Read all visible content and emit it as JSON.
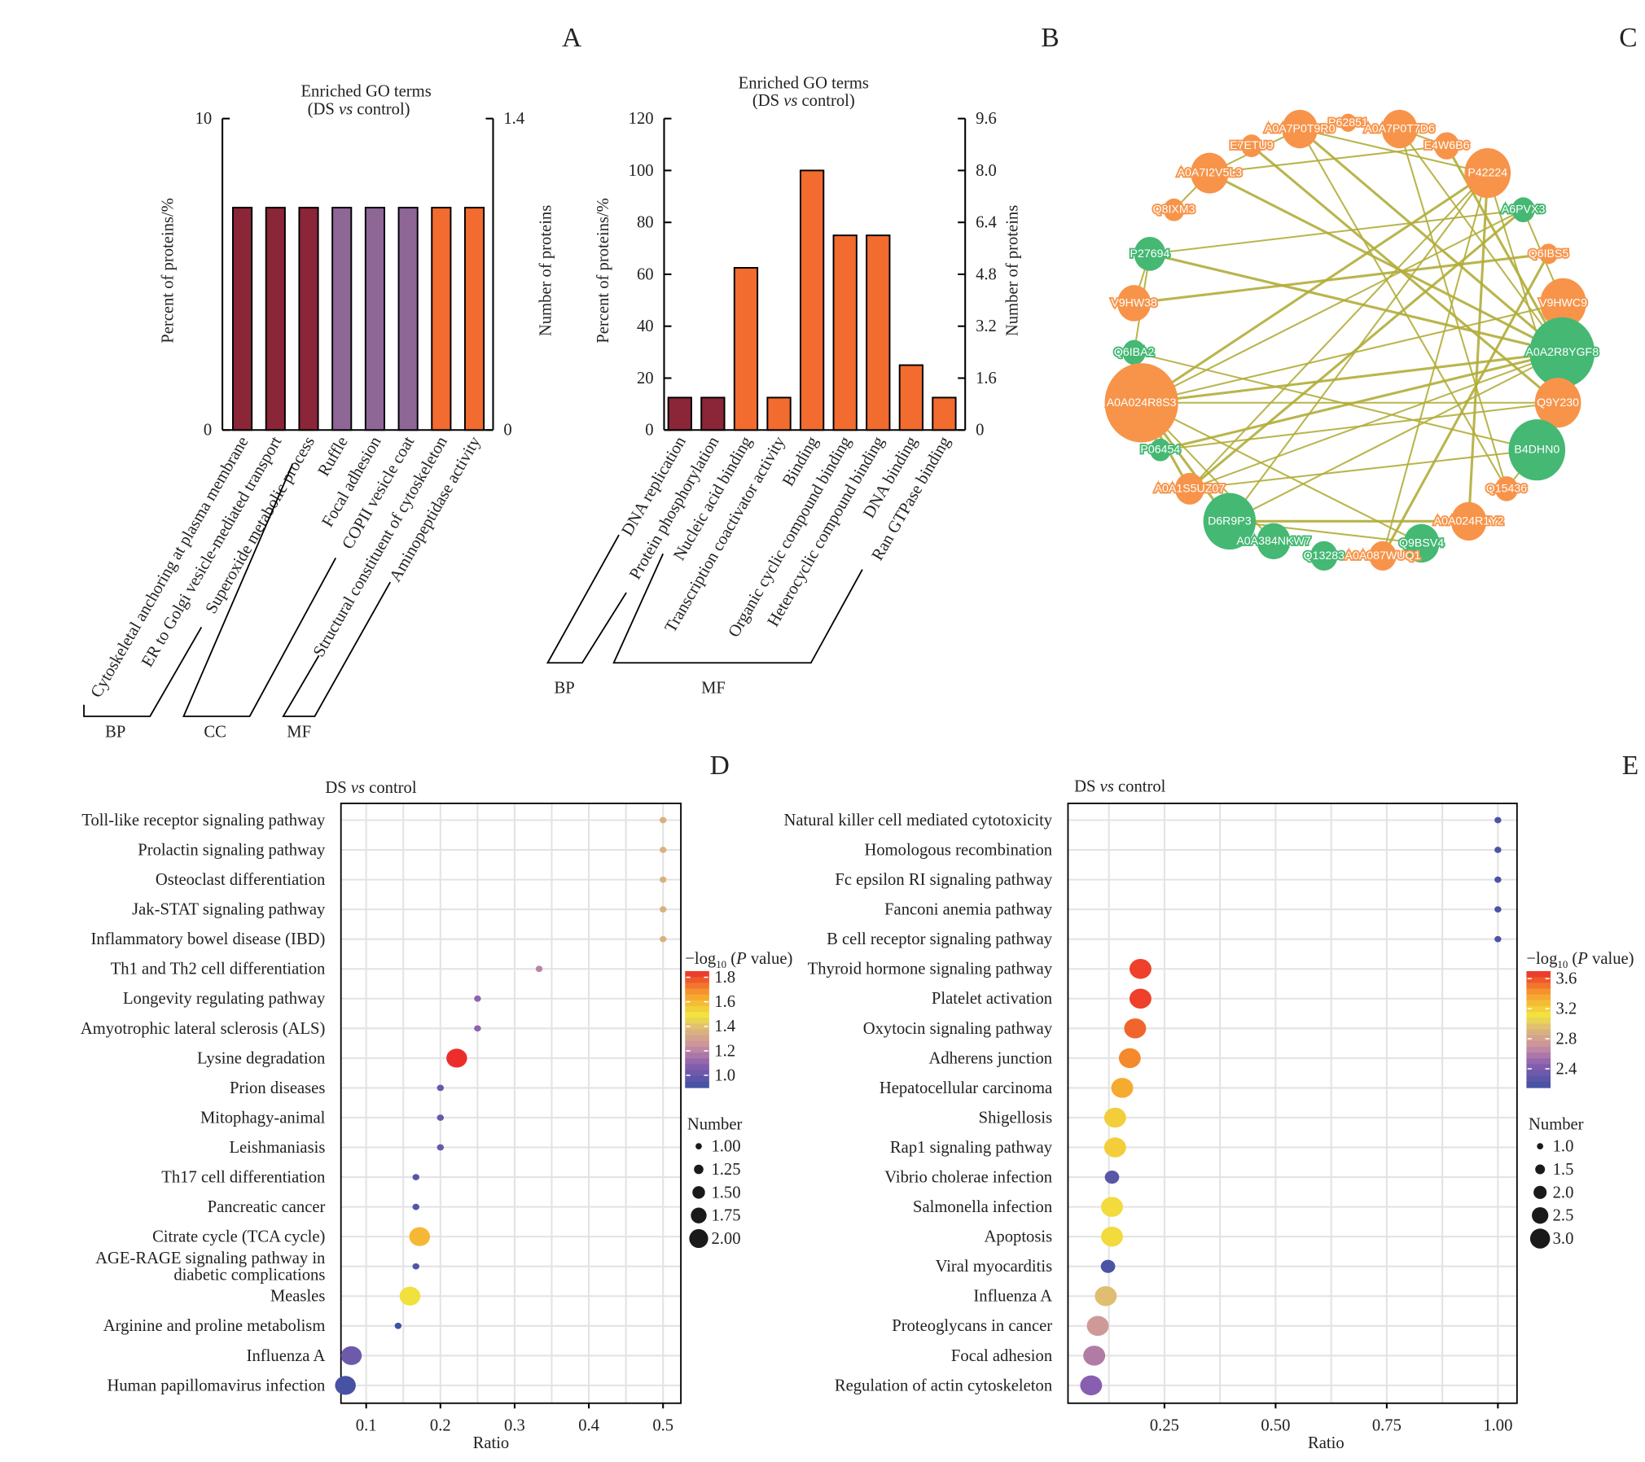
{
  "panel_labels": {
    "a": "A",
    "b": "B",
    "c": "C",
    "d": "D",
    "e": "E"
  },
  "colors": {
    "BP": "#8b2538",
    "CC": "#8e6796",
    "MF": "#f26b2f",
    "node_orange": "#f7944a",
    "node_green": "#45b873",
    "edge": "#b2ad3a"
  },
  "chart_data": [
    {
      "type": "bar",
      "panel": "A",
      "title": "Enriched GO terms",
      "subtitle_parts": [
        "(DS ",
        "vs",
        " control)"
      ],
      "ylabel": "Percent of proteins/%",
      "y2label": "Number of proteins",
      "ylim": [
        0,
        10
      ],
      "yticks": [
        "0",
        "10"
      ],
      "y2lim": [
        0,
        1.4
      ],
      "y2ticks": [
        "0",
        "1.4"
      ],
      "categories": [
        "Cytoskeletal anchoring at plasma membrane",
        "ER to Golgi vesicle-mediated transport",
        "Superoxide metabolic process",
        "Ruffle",
        "Focal adhesion",
        "COPII vesicle coat",
        "Structural constituent of cytoskeleton",
        "Aminopeptidase activity"
      ],
      "groups": [
        "BP",
        "BP",
        "BP",
        "CC",
        "CC",
        "CC",
        "MF",
        "MF"
      ],
      "group_labels": [
        "BP",
        "CC",
        "MF"
      ],
      "percent": [
        7.14,
        7.14,
        7.14,
        7.14,
        7.14,
        7.14,
        7.14,
        7.14
      ],
      "count": [
        1,
        1,
        1,
        1,
        1,
        1,
        1,
        1
      ]
    },
    {
      "type": "bar",
      "panel": "B",
      "title": "Enriched GO terms",
      "subtitle_parts": [
        "(DS ",
        "vs",
        " control)"
      ],
      "ylabel": "Percent of proteins/%",
      "y2label": "Number of proteins",
      "ylim": [
        0,
        120
      ],
      "yticks": [
        "0",
        "20",
        "40",
        "60",
        "80",
        "100",
        "120"
      ],
      "y2lim": [
        0,
        9.6
      ],
      "y2ticks": [
        "0",
        "1.6",
        "3.2",
        "4.8",
        "6.4",
        "8.0",
        "9.6"
      ],
      "categories": [
        "DNA replication",
        "Protein phosphorylation",
        "Nucleic acid binding",
        "Transcription coactivator activity",
        "Binding",
        "Organic cyclic compound binding",
        "Heterocyclic compound binding",
        "DNA binding",
        "Ran GTPase binding"
      ],
      "groups": [
        "BP",
        "BP",
        "MF",
        "MF",
        "MF",
        "MF",
        "MF",
        "MF",
        "MF"
      ],
      "group_labels": [
        "BP",
        "MF"
      ],
      "percent": [
        12.5,
        12.5,
        62.5,
        12.5,
        100,
        75,
        75,
        25,
        12.5
      ],
      "count": [
        1,
        1,
        5,
        1,
        8,
        6,
        6,
        2,
        1
      ]
    },
    {
      "type": "network",
      "panel": "C",
      "nodes": [
        {
          "id": "P62851",
          "group": "orange"
        },
        {
          "id": "A0A7P0T9R0",
          "group": "orange"
        },
        {
          "id": "A0A7P0T7D6",
          "group": "orange"
        },
        {
          "id": "E7ETU9",
          "group": "orange"
        },
        {
          "id": "E4W6B6",
          "group": "orange"
        },
        {
          "id": "A0A7I2V5L3",
          "group": "orange"
        },
        {
          "id": "P42224",
          "group": "orange"
        },
        {
          "id": "Q8IXM3",
          "group": "orange"
        },
        {
          "id": "A6PVX3",
          "group": "green"
        },
        {
          "id": "P27694",
          "group": "green"
        },
        {
          "id": "Q6IBS5",
          "group": "orange"
        },
        {
          "id": "V9HW38",
          "group": "orange"
        },
        {
          "id": "V9HWC9",
          "group": "orange"
        },
        {
          "id": "Q6IBA2",
          "group": "green"
        },
        {
          "id": "A0A2R8YGF8",
          "group": "green"
        },
        {
          "id": "A0A024R8S3",
          "group": "orange"
        },
        {
          "id": "Q9Y230",
          "group": "orange"
        },
        {
          "id": "P06454",
          "group": "green"
        },
        {
          "id": "B4DHN0",
          "group": "green"
        },
        {
          "id": "A0A1S5UZ07",
          "group": "orange"
        },
        {
          "id": "Q15436",
          "group": "orange"
        },
        {
          "id": "D6R9P3",
          "group": "green"
        },
        {
          "id": "A0A024R1Y2",
          "group": "orange"
        },
        {
          "id": "A0A384NKW7",
          "group": "green"
        },
        {
          "id": "Q9BSV4",
          "group": "green"
        },
        {
          "id": "Q13283",
          "group": "green"
        },
        {
          "id": "A0A087WUQ1",
          "group": "orange"
        }
      ],
      "edges": [
        [
          "A0A024R8S3",
          "A0A2R8YGF8"
        ],
        [
          "A0A024R8S3",
          "Q9Y230"
        ],
        [
          "A0A024R8S3",
          "V9HWC9"
        ],
        [
          "A0A024R8S3",
          "P42224"
        ],
        [
          "A0A024R8S3",
          "A6PVX3"
        ],
        [
          "A0A024R8S3",
          "Q9BSV4"
        ],
        [
          "A0A024R8S3",
          "D6R9P3"
        ],
        [
          "A0A024R8S3",
          "A0A384NKW7"
        ],
        [
          "A0A024R8S3",
          "P06454"
        ],
        [
          "A0A024R8S3",
          "A0A1S5UZ07"
        ],
        [
          "A0A024R8S3",
          "Q6IBA2"
        ],
        [
          "P27694",
          "A6PVX3"
        ],
        [
          "P27694",
          "A0A2R8YGF8"
        ],
        [
          "P27694",
          "V9HW38"
        ],
        [
          "P27694",
          "Q6IBA2"
        ],
        [
          "V9HW38",
          "Q6IBS5"
        ],
        [
          "Q6IBA2",
          "B4DHN0"
        ],
        [
          "A0A7I2V5L3",
          "E4W6B6"
        ],
        [
          "A0A7I2V5L3",
          "A0A2R8YGF8"
        ],
        [
          "A0A7I2V5L3",
          "Q8IXM3"
        ],
        [
          "A0A7I2V5L3",
          "A0A7P0T9R0"
        ],
        [
          "A0A7P0T9R0",
          "A0A2R8YGF8"
        ],
        [
          "A0A7P0T9R0",
          "Q15436"
        ],
        [
          "A0A7P0T9R0",
          "P42224"
        ],
        [
          "E7ETU9",
          "Q9Y230"
        ],
        [
          "A0A7P0T7D6",
          "E4W6B6"
        ],
        [
          "A0A7P0T7D6",
          "A0A2R8YGF8"
        ],
        [
          "E4W6B6",
          "A0A2R8YGF8"
        ],
        [
          "P42224",
          "D6R9P3"
        ],
        [
          "P42224",
          "A0A1S5UZ07"
        ],
        [
          "P42224",
          "A0A024R1Y2"
        ],
        [
          "P42224",
          "Q9Y230"
        ],
        [
          "P42224",
          "A0A087WUQ1"
        ],
        [
          "A6PVX3",
          "A0A1S5UZ07"
        ],
        [
          "A6PVX3",
          "V9HWC9"
        ],
        [
          "P06454",
          "Q9Y230"
        ],
        [
          "P06454",
          "A0A2R8YGF8"
        ],
        [
          "A0A1S5UZ07",
          "B4DHN0"
        ],
        [
          "A0A1S5UZ07",
          "A0A2R8YGF8"
        ],
        [
          "D6R9P3",
          "A0A024R1Y2"
        ],
        [
          "D6R9P3",
          "Q9BSV4"
        ],
        [
          "D6R9P3",
          "A0A2R8YGF8"
        ],
        [
          "Q6IBS5",
          "A0A087WUQ1"
        ],
        [
          "Q15436",
          "B4DHN0"
        ],
        [
          "A0A7P0T7D6",
          "Q15436"
        ]
      ]
    },
    {
      "type": "scatter",
      "panel": "D",
      "title_parts": [
        "DS ",
        "vs",
        " control"
      ],
      "xlabel": "Ratio",
      "xlim": [
        0.066,
        0.524
      ],
      "xticks": [
        0.1,
        0.2,
        0.3,
        0.4,
        0.5
      ],
      "xtick_labels": [
        "0.1",
        "0.2",
        "0.3",
        "0.4",
        "0.5"
      ],
      "grid": true,
      "color_legend_title": "−log10 (P value)",
      "color_ticks": [
        "1.8",
        "1.6",
        "1.4",
        "1.2",
        "1.0"
      ],
      "color_range": [
        0.9,
        1.85
      ],
      "size_legend_title": "Number",
      "size_ticks": [
        "1.00",
        "1.25",
        "1.50",
        "1.75",
        "2.00"
      ],
      "size_range": [
        1,
        2
      ],
      "categories": [
        "Toll-like receptor signaling pathway",
        "Prolactin signaling pathway",
        "Osteoclast differentiation",
        "Jak-STAT signaling pathway",
        "Inflammatory bowel disease (IBD)",
        "Th1 and Th2 cell differentiation",
        "Longevity regulating pathway",
        "Amyotrophic lateral sclerosis (ALS)",
        "Lysine degradation",
        "Prion diseases",
        "Mitophagy-animal",
        "Leishmaniasis",
        "Th17 cell differentiation",
        "Pancreatic cancer",
        "Citrate cycle (TCA cycle)",
        "AGE-RAGE signaling pathway in diabetic complications",
        "Measles",
        "Arginine and proline metabolism",
        "Influenza A",
        "Human papillomavirus infection"
      ],
      "ratio": [
        0.5,
        0.5,
        0.5,
        0.5,
        0.5,
        0.333,
        0.25,
        0.25,
        0.222,
        0.2,
        0.2,
        0.2,
        0.167,
        0.167,
        0.172,
        0.167,
        0.159,
        0.143,
        0.08,
        0.072
      ],
      "neg_log10_p": [
        1.35,
        1.35,
        1.35,
        1.35,
        1.35,
        1.2,
        1.1,
        1.1,
        1.85,
        1.0,
        1.0,
        1.0,
        0.95,
        0.95,
        1.6,
        0.95,
        1.5,
        0.9,
        1.02,
        0.92
      ],
      "number": [
        1,
        1,
        1,
        1,
        1,
        1,
        1,
        1,
        2,
        1,
        1,
        1,
        1,
        1,
        2,
        1,
        2,
        1,
        2,
        2
      ]
    },
    {
      "type": "scatter",
      "panel": "E",
      "title_parts": [
        "DS ",
        "vs",
        " control"
      ],
      "xlabel": "Ratio",
      "xlim": [
        0.033,
        1.043
      ],
      "xticks": [
        0.25,
        0.5,
        0.75,
        1.0
      ],
      "xtick_labels": [
        "0.25",
        "0.50",
        "0.75",
        "1.00"
      ],
      "grid": true,
      "color_legend_title": "−log10 (P value)",
      "color_ticks": [
        "3.6",
        "3.2",
        "2.8",
        "2.4"
      ],
      "color_range": [
        2.15,
        3.7
      ],
      "size_legend_title": "Number",
      "size_ticks": [
        "1.0",
        "1.5",
        "2.0",
        "2.5",
        "3.0"
      ],
      "size_range": [
        1,
        3
      ],
      "categories": [
        "Natural killer cell mediated cytotoxicity",
        "Homologous recombination",
        "Fc epsilon RI signaling pathway",
        "Fanconi anemia pathway",
        "B cell receptor signaling pathway",
        "Thyroid hormone signaling pathway",
        "Platelet activation",
        "Oxytocin signaling pathway",
        "Adherens junction",
        "Hepatocellular carcinoma",
        "Shigellosis",
        "Rap1 signaling pathway",
        "Vibrio cholerae infection",
        "Salmonella infection",
        "Apoptosis",
        "Viral myocarditis",
        "Influenza A",
        "Proteoglycans in cancer",
        "Focal adhesion",
        "Regulation of actin cytoskeleton"
      ],
      "ratio": [
        1.0,
        1.0,
        1.0,
        1.0,
        1.0,
        0.196,
        0.196,
        0.184,
        0.172,
        0.155,
        0.139,
        0.139,
        0.132,
        0.132,
        0.132,
        0.123,
        0.118,
        0.1,
        0.092,
        0.085
      ],
      "neg_log10_p": [
        2.2,
        2.2,
        2.2,
        2.2,
        2.2,
        3.65,
        3.65,
        3.55,
        3.45,
        3.35,
        3.2,
        3.2,
        2.25,
        3.15,
        3.15,
        2.2,
        2.95,
        2.75,
        2.6,
        2.45
      ],
      "number": [
        1,
        1,
        1,
        1,
        1,
        3,
        3,
        3,
        3,
        3,
        3,
        3,
        2,
        3,
        3,
        2,
        3,
        3,
        3,
        3
      ]
    }
  ]
}
